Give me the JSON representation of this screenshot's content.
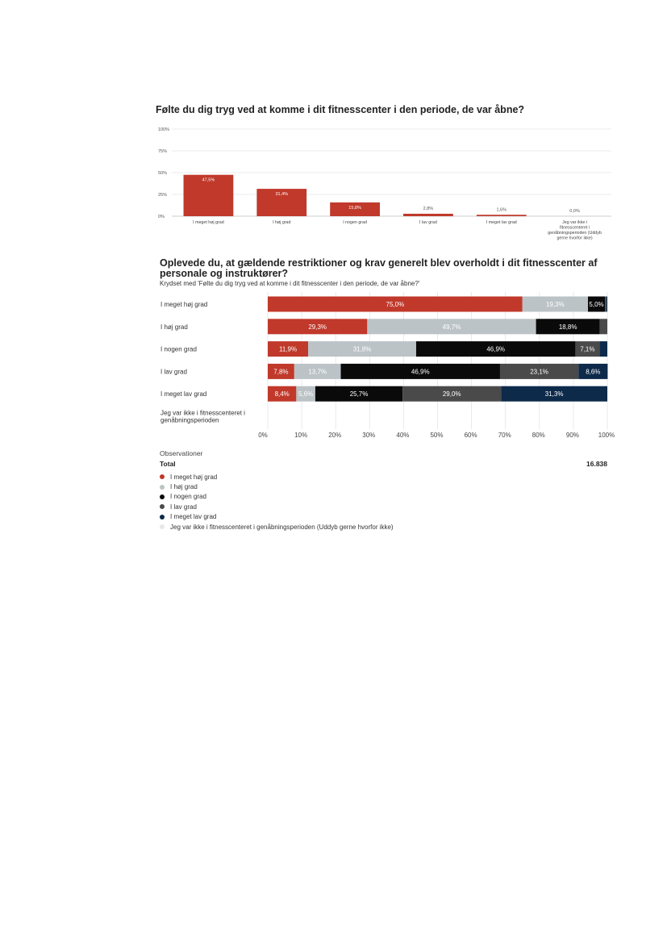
{
  "colors": {
    "red": "#c0392b",
    "light_gray": "#bcc3c6",
    "black": "#0a0a0a",
    "dark_gray": "#4a4a4a",
    "navy": "#0d2a4a",
    "very_light": "#e6e8ea",
    "grid": "#e4e4e4"
  },
  "chart_data": [
    {
      "type": "bar",
      "title": "Følte du dig tryg ved at komme i dit fitnesscenter i den periode, de var åbne?",
      "categories": [
        "I meget høj grad",
        "I høj grad",
        "I nogen grad",
        "I lav grad",
        "I meget lav grad",
        "Jeg var ikke i fitnesscenteret i genåbningsperioden (Uddyb gerne hvorfor ikke)"
      ],
      "values": [
        47.5,
        31.4,
        15.8,
        2.8,
        1.6,
        0.0
      ],
      "value_labels": [
        "47,5%",
        "31,4%",
        "15,8%",
        "2,8%",
        "1,6%",
        "0,0%"
      ],
      "yticks": [
        "0%",
        "25%",
        "50%",
        "75%",
        "100%"
      ],
      "ylim": [
        0,
        100
      ],
      "grid": true
    },
    {
      "type": "bar",
      "orientation": "horizontal-stacked",
      "title": "Oplevede du, at gældende restriktioner og krav generelt blev overholdt i dit fitnesscenter af personale og instruktører?",
      "subtitle": "Krydset med 'Følte du dig tryg ved at komme i dit fitnesscenter i den periode, de var åbne?'",
      "categories": [
        "I meget høj grad",
        "I høj grad",
        "I nogen grad",
        "I lav grad",
        "I meget lav grad",
        "Jeg var ikke i fitnesscenteret i genåbningsperioden"
      ],
      "series": [
        {
          "name": "I meget høj grad",
          "values": [
            75.0,
            29.3,
            11.9,
            7.8,
            8.4,
            0
          ],
          "labels": [
            "75,0%",
            "29,3%",
            "11,9%",
            "7,8%",
            "8,4%",
            ""
          ]
        },
        {
          "name": "I høj grad",
          "values": [
            19.3,
            49.7,
            31.8,
            13.7,
            5.6,
            0
          ],
          "labels": [
            "19,3%",
            "49,7%",
            "31,8%",
            "13,7%",
            "5,6%",
            ""
          ]
        },
        {
          "name": "I nogen grad",
          "values": [
            5.0,
            18.8,
            46.9,
            46.9,
            25.7,
            0
          ],
          "labels": [
            "5,0%",
            "18,8%",
            "46,9%",
            "46,9%",
            "25,7%",
            ""
          ]
        },
        {
          "name": "I lav grad",
          "values": [
            0.4,
            2.2,
            7.1,
            23.1,
            29.0,
            0
          ],
          "labels": [
            "",
            "",
            "7,1%",
            "23,1%",
            "29,0%",
            ""
          ]
        },
        {
          "name": "I meget lav grad",
          "values": [
            0.3,
            0,
            2.3,
            8.6,
            31.3,
            0
          ],
          "labels": [
            "",
            "",
            "",
            "8,6%",
            "31,3%",
            ""
          ]
        },
        {
          "name": "Jeg var ikke i fitnesscenteret i genåbningsperioden (Uddyb gerne hvorfor ikke)",
          "values": [
            0,
            0,
            0,
            0,
            0,
            0
          ],
          "labels": [
            "",
            "",
            "",
            "",
            "",
            ""
          ]
        }
      ],
      "xticks": [
        "0%",
        "10%",
        "20%",
        "30%",
        "40%",
        "50%",
        "60%",
        "70%",
        "80%",
        "90%",
        "100%"
      ],
      "xlim": [
        0,
        100
      ],
      "grid": true
    }
  ],
  "observations": {
    "title": "Observationer",
    "total_label": "Total",
    "total_value": "16.838"
  },
  "legend": [
    {
      "label": "I meget høj grad",
      "color": "#c0392b"
    },
    {
      "label": "I høj grad",
      "color": "#bcc3c6"
    },
    {
      "label": "I nogen grad",
      "color": "#0a0a0a"
    },
    {
      "label": "I lav grad",
      "color": "#4a4a4a"
    },
    {
      "label": "I meget lav grad",
      "color": "#0d2a4a"
    },
    {
      "label": "Jeg var ikke i fitnesscenteret i genåbningsperioden (Uddyb gerne hvorfor ikke)",
      "color": "#e6e8ea"
    }
  ]
}
